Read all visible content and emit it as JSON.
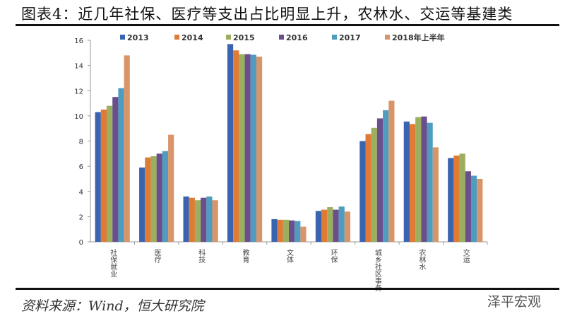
{
  "title": "图表4：近几年社保、医疗等支出占比明显上升，农林水、交运等基建类",
  "source": "资料来源：Wind，恒大研究院",
  "watermark": "泽平宏观",
  "chart_data": {
    "type": "bar",
    "categories": [
      "社保就业",
      "医疗",
      "科技",
      "教育",
      "文体",
      "环保",
      "城乡社区事务",
      "农林水",
      "交运"
    ],
    "series": [
      {
        "name": "2013",
        "color": "#3A64B0",
        "values": [
          10.3,
          5.9,
          3.6,
          15.7,
          1.8,
          2.45,
          8.0,
          9.55,
          6.65
        ]
      },
      {
        "name": "2014",
        "color": "#E07B35",
        "values": [
          10.5,
          6.7,
          3.5,
          15.2,
          1.75,
          2.55,
          8.55,
          9.35,
          6.85
        ]
      },
      {
        "name": "2015",
        "color": "#9BAF5F",
        "values": [
          10.8,
          6.8,
          3.3,
          14.9,
          1.75,
          2.75,
          9.05,
          9.9,
          7.0
        ]
      },
      {
        "name": "2016",
        "color": "#6B4F8C",
        "values": [
          11.5,
          7.0,
          3.5,
          14.9,
          1.7,
          2.55,
          9.8,
          9.95,
          5.6
        ]
      },
      {
        "name": "2017",
        "color": "#4E9CC0",
        "values": [
          12.2,
          7.2,
          3.6,
          14.85,
          1.65,
          2.8,
          10.45,
          9.45,
          5.25
        ]
      },
      {
        "name": "2018年上半年",
        "color": "#D9956A",
        "values": [
          14.8,
          8.5,
          3.3,
          14.7,
          1.2,
          2.4,
          11.2,
          7.5,
          5.0
        ]
      }
    ],
    "ylim": [
      0,
      16
    ],
    "yticks": [
      0,
      2,
      4,
      6,
      8,
      10,
      12,
      14,
      16
    ],
    "grid": false,
    "legend": "top"
  }
}
